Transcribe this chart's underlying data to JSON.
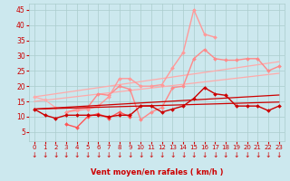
{
  "bg_color": "#cce8ee",
  "grid_color": "#aacccc",
  "xlabel": "Vent moyen/en rafales ( km/h )",
  "xlabel_color": "#cc0000",
  "tick_color": "#cc0000",
  "arrow_color": "#cc0000",
  "ylim": [
    2,
    47
  ],
  "yticks": [
    5,
    10,
    15,
    20,
    25,
    30,
    35,
    40,
    45
  ],
  "xlim": [
    -0.5,
    23.5
  ],
  "xticks": [
    0,
    1,
    2,
    3,
    4,
    5,
    6,
    7,
    8,
    9,
    10,
    11,
    12,
    13,
    14,
    15,
    16,
    17,
    18,
    19,
    20,
    21,
    22,
    23
  ],
  "series": [
    {
      "color": "#ffaaaa",
      "linewidth": 0.9,
      "marker": "D",
      "markersize": 2.0,
      "y": [
        16.5,
        15.5,
        13.0,
        null,
        null,
        null,
        null,
        null,
        null,
        null,
        null,
        null,
        null,
        null,
        null,
        null,
        null,
        null,
        null,
        null,
        null,
        null,
        null,
        null
      ]
    },
    {
      "color": "#ffaaaa",
      "linewidth": 0.9,
      "marker": null,
      "y": [
        16.5,
        17.0,
        17.5,
        18.0,
        18.5,
        19.0,
        19.5,
        20.0,
        20.5,
        21.0,
        21.5,
        22.0,
        22.5,
        23.0,
        23.5,
        24.0,
        24.5,
        25.0,
        25.5,
        26.0,
        26.5,
        27.0,
        27.5,
        28.0
      ]
    },
    {
      "color": "#ffaaaa",
      "linewidth": 0.9,
      "marker": null,
      "y": [
        15.0,
        15.4,
        15.8,
        16.2,
        16.6,
        17.0,
        17.4,
        17.8,
        18.2,
        18.6,
        19.0,
        19.4,
        19.8,
        20.2,
        20.6,
        21.0,
        21.4,
        21.8,
        22.2,
        22.6,
        23.0,
        23.4,
        23.8,
        24.2
      ]
    },
    {
      "color": "#ff8888",
      "linewidth": 1.0,
      "marker": "D",
      "markersize": 2.0,
      "y": [
        null,
        null,
        null,
        11.5,
        12.5,
        13.0,
        17.5,
        17.0,
        20.0,
        19.0,
        9.0,
        11.5,
        13.0,
        19.5,
        20.0,
        29.0,
        32.0,
        29.0,
        28.5,
        28.5,
        29.0,
        29.0,
        25.0,
        26.5
      ]
    },
    {
      "color": "#ff5555",
      "linewidth": 1.0,
      "marker": "D",
      "markersize": 2.0,
      "y": [
        null,
        null,
        null,
        7.5,
        6.5,
        10.0,
        11.0,
        9.5,
        11.5,
        10.0,
        null,
        null,
        null,
        null,
        null,
        null,
        null,
        null,
        null,
        null,
        null,
        null,
        null,
        null
      ]
    },
    {
      "color": "#ff9999",
      "linewidth": 1.0,
      "marker": "D",
      "markersize": 2.0,
      "y": [
        null,
        null,
        null,
        11.5,
        12.0,
        12.5,
        13.5,
        16.5,
        22.5,
        22.5,
        20.0,
        20.0,
        20.5,
        26.0,
        31.0,
        45.0,
        37.0,
        36.0,
        null,
        null,
        null,
        null,
        null,
        null
      ]
    },
    {
      "color": "#cc0000",
      "linewidth": 1.0,
      "marker": "D",
      "markersize": 2.0,
      "y": [
        12.5,
        10.5,
        9.5,
        10.5,
        10.5,
        10.5,
        10.5,
        10.0,
        10.5,
        10.5,
        13.5,
        13.5,
        11.5,
        12.5,
        13.5,
        16.0,
        19.5,
        17.5,
        17.0,
        13.5,
        13.5,
        13.5,
        12.0,
        13.5
      ]
    },
    {
      "color": "#cc0000",
      "linewidth": 0.9,
      "marker": null,
      "y": [
        12.5,
        12.7,
        12.9,
        13.1,
        13.3,
        13.5,
        13.7,
        13.9,
        14.1,
        14.3,
        14.5,
        14.7,
        14.9,
        15.1,
        15.3,
        15.5,
        15.7,
        15.9,
        16.1,
        16.3,
        16.5,
        16.7,
        16.9,
        17.1
      ]
    },
    {
      "color": "#cc0000",
      "linewidth": 0.9,
      "marker": null,
      "y": [
        12.5,
        12.6,
        12.7,
        12.8,
        12.9,
        13.0,
        13.1,
        13.2,
        13.3,
        13.4,
        13.5,
        13.6,
        13.7,
        13.8,
        13.9,
        14.0,
        14.1,
        14.2,
        14.3,
        14.4,
        14.5,
        14.6,
        14.7,
        14.8
      ]
    }
  ]
}
